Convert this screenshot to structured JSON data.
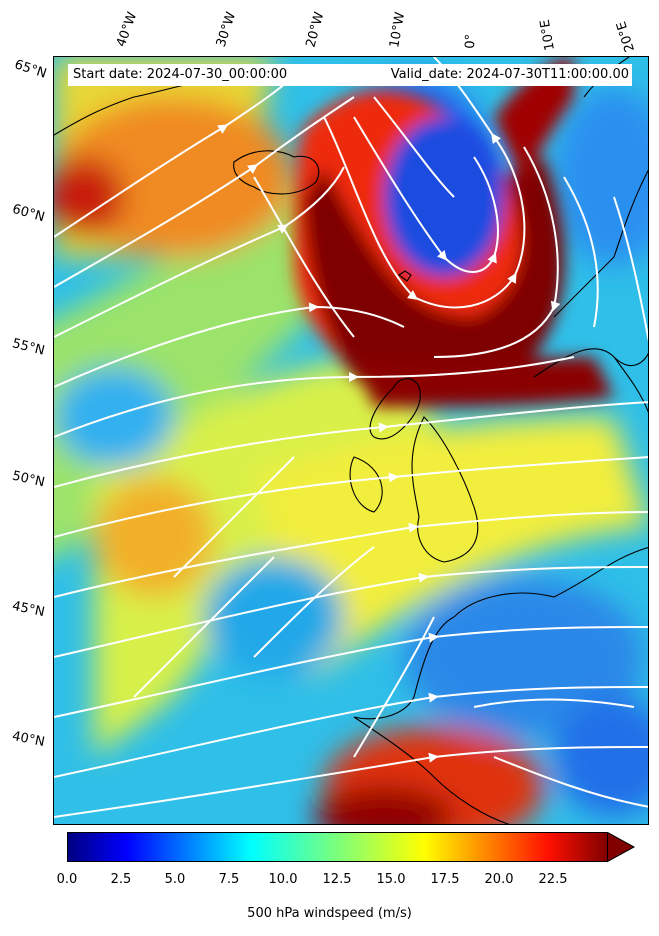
{
  "header": {
    "start_date": "Start date: 2024-07-30_00:00:00",
    "valid_date": "Valid_date: 2024-07-30T11:00:00.00"
  },
  "longitude_labels": [
    "40°W",
    "30°W",
    "20°W",
    "10°W",
    "0°",
    "10°E",
    "20°E"
  ],
  "latitude_labels": [
    "65°N",
    "60°N",
    "55°N",
    "50°N",
    "45°N",
    "40°N"
  ],
  "colorbar": {
    "label": "500 hPa windspeed (m/s)",
    "ticks": [
      "0.0",
      "2.5",
      "5.0",
      "7.5",
      "10.0",
      "12.5",
      "15.0",
      "17.5",
      "20.0",
      "22.5"
    ],
    "min": 0,
    "max": 25,
    "extend": "max",
    "colormap": "jet"
  },
  "colors": {
    "streamline": "#ffffff",
    "coastline": "#000000",
    "jet_core": "#800000"
  }
}
